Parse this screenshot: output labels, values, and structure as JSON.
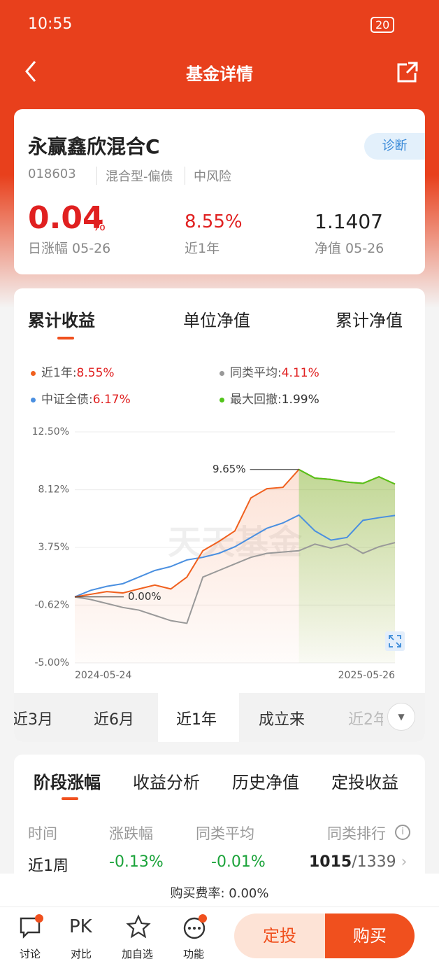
{
  "status": {
    "time": "10:55",
    "battery": "20"
  },
  "header": {
    "title": "基金详情"
  },
  "fund": {
    "name": "永赢鑫欣混合C",
    "diagnose": "诊断",
    "code": "018603",
    "type": "混合型-偏债",
    "risk": "中风险",
    "daily_change": {
      "value": "0.04",
      "unit": "%",
      "label": "日涨幅 05-26"
    },
    "year_return": {
      "value": "8.55%",
      "label": "近1年"
    },
    "nav": {
      "value": "1.1407",
      "label": "净值 05-26"
    }
  },
  "chart_tabs": [
    "累计收益",
    "单位净值",
    "累计净值"
  ],
  "legend": [
    {
      "label": "近1年:",
      "value": "8.55%"
    },
    {
      "label": "同类平均:",
      "value": "4.11%"
    },
    {
      "label": "中证全债:",
      "value": "6.17%"
    },
    {
      "label": "最大回撤:",
      "value": "1.99%"
    }
  ],
  "chart": {
    "type": "line",
    "watermark": "天天基金",
    "categories": [
      "2024-05-24",
      null,
      null,
      null,
      null,
      null,
      null,
      null,
      null,
      null,
      null,
      null,
      null,
      null,
      null,
      null,
      null,
      null,
      null,
      null,
      "2025-05-26"
    ],
    "ylim": [
      -5,
      12.5
    ],
    "yticks": [
      {
        "value": -5,
        "label": "-5.00%"
      },
      {
        "value": -0.62,
        "label": "-0.62%"
      },
      {
        "value": 3.75,
        "label": "3.75%"
      },
      {
        "value": 8.12,
        "label": "8.12%"
      },
      {
        "value": 12.5,
        "label": "12.50%"
      }
    ],
    "grid": true,
    "series": [
      {
        "name": "近1年",
        "color": "#f0601e",
        "values": [
          0,
          0.2,
          0.4,
          0.3,
          0.6,
          0.9,
          0.6,
          1.5,
          3.5,
          4.2,
          5,
          7.5,
          8.2,
          8.3,
          9.65,
          9,
          8.9,
          8.7,
          8.6,
          9.1,
          8.55
        ],
        "value_labels": [
          "0.00%",
          null,
          null,
          null,
          null,
          null,
          null,
          null,
          null,
          null,
          null,
          null,
          null,
          null,
          "9.65%",
          null,
          null,
          null,
          null,
          null,
          null
        ]
      },
      {
        "name": "中证全债",
        "color": "#4a8fe0",
        "values": [
          0,
          0.5,
          0.8,
          1,
          1.5,
          2,
          2.3,
          2.8,
          3,
          3.3,
          3.8,
          4.5,
          5.2,
          5.6,
          6.2,
          5,
          4.3,
          4.5,
          5.8,
          6,
          6.17
        ]
      },
      {
        "name": "同类平均",
        "color": "#999999",
        "values": [
          0,
          -0.2,
          -0.5,
          -0.8,
          -1,
          -1.4,
          -1.8,
          -2,
          1.5,
          2,
          2.5,
          3,
          3.3,
          3.4,
          3.5,
          4,
          3.7,
          4,
          3.3,
          3.8,
          4.11
        ]
      }
    ],
    "drawdown_color": "#52c41a"
  },
  "periods": [
    "近3月",
    "近6月",
    "近1年",
    "成立来",
    "近2年"
  ],
  "stage_tabs": [
    "阶段涨幅",
    "收益分析",
    "历史净值",
    "定投收益"
  ],
  "table": {
    "headers": [
      "时间",
      "涨跌幅",
      "同类平均",
      "同类排行"
    ],
    "rows": [
      [
        "近1周",
        "-0.13%",
        "-0.01%",
        "1015",
        "/1339"
      ]
    ]
  },
  "fee": "购买费率: 0.00%",
  "nav": [
    {
      "icon": "",
      "label": "讨论"
    },
    {
      "icon": "PK",
      "label": "对比"
    },
    {
      "icon": "",
      "label": "加自选"
    },
    {
      "icon": "",
      "label": "功能"
    }
  ],
  "buttons": [
    "定投",
    "购买"
  ]
}
